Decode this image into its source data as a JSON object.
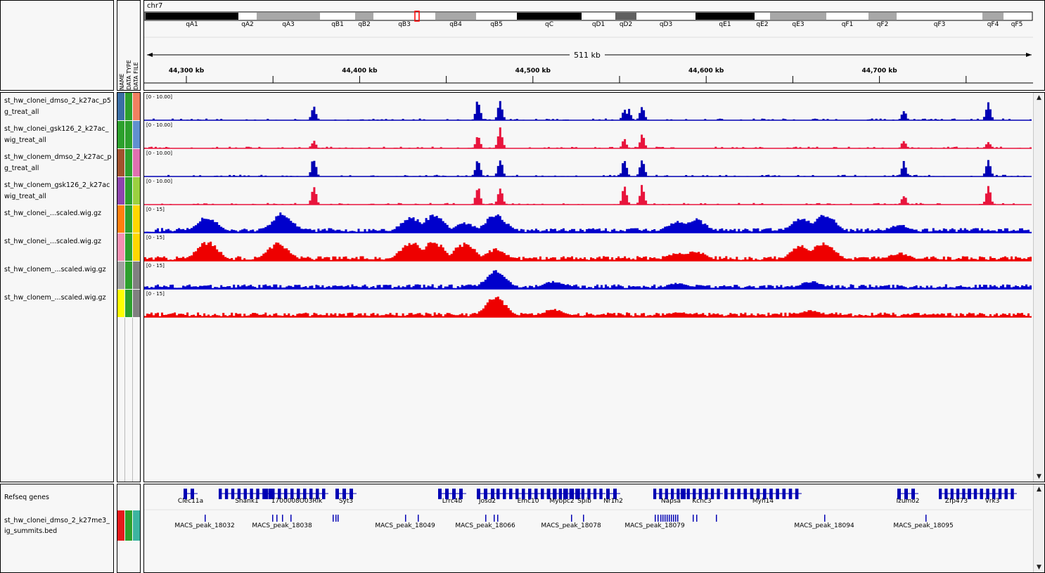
{
  "header": {
    "chromosome": "chr7",
    "span_label": "511 kb",
    "attribute_headers": [
      "NAME",
      "DATA TYPE",
      "DATA FILE"
    ],
    "cytobands": [
      {
        "name": "qA1",
        "stain": "black"
      },
      {
        "name": "qA2",
        "stain": "white"
      },
      {
        "name": "qA3",
        "stain": "grey"
      },
      {
        "name": "qB1",
        "stain": "white"
      },
      {
        "name": "qB2",
        "stain": "grey"
      },
      {
        "name": "qB3",
        "stain": "white"
      },
      {
        "name": "qB4",
        "stain": "grey"
      },
      {
        "name": "qB5",
        "stain": "white"
      },
      {
        "name": "qC",
        "stain": "black"
      },
      {
        "name": "qD1",
        "stain": "white"
      },
      {
        "name": "qD2",
        "stain": "darkgrey"
      },
      {
        "name": "qD3",
        "stain": "white"
      },
      {
        "name": "qE1",
        "stain": "black"
      },
      {
        "name": "qE2",
        "stain": "white"
      },
      {
        "name": "qE3",
        "stain": "grey"
      },
      {
        "name": "qF1",
        "stain": "white"
      },
      {
        "name": "qF2",
        "stain": "grey"
      },
      {
        "name": "qF3",
        "stain": "white"
      },
      {
        "name": "qF4",
        "stain": "grey"
      },
      {
        "name": "qF5",
        "stain": "white"
      }
    ],
    "ruler_ticks": [
      "44,300 kb",
      "44,400 kb",
      "44,500 kb",
      "44,600 kb",
      "44,700 kb"
    ]
  },
  "tracks": [
    {
      "name_line1": "st_hw_clonei_dmso_2_k27ac_p5",
      "name_line2": "g_treat_all",
      "range": "[0 - 10.00]",
      "color": "#0000b4",
      "attr_colors": [
        "#3a6ea5",
        "#2ca02c",
        "#f08060"
      ],
      "peaks": [
        [
          0.19,
          0.7
        ],
        [
          0.375,
          1.0
        ],
        [
          0.4,
          1.0
        ],
        [
          0.54,
          0.6
        ],
        [
          0.545,
          0.55
        ],
        [
          0.56,
          0.8
        ],
        [
          0.855,
          0.5
        ],
        [
          0.95,
          1.0
        ]
      ]
    },
    {
      "name_line1": "st_hw_clonei_gsk126_2_k27ac_",
      "name_line2": "wig_treat_all",
      "range": "[0 - 10.00]",
      "color": "#e8143c",
      "attr_colors": [
        "#2ca02c",
        "#2ca02c",
        "#6090d0"
      ],
      "peaks": [
        [
          0.19,
          0.4
        ],
        [
          0.375,
          0.6
        ],
        [
          0.4,
          1.0
        ],
        [
          0.54,
          0.45
        ],
        [
          0.56,
          0.7
        ],
        [
          0.855,
          0.4
        ],
        [
          0.95,
          0.35
        ]
      ]
    },
    {
      "name_line1": "st_hw_clonem_dmso_2_k27ac_p",
      "name_line2": "g_treat_all",
      "range": "[0 - 10.00]",
      "color": "#0000b4",
      "attr_colors": [
        "#a0522d",
        "#2ca02c",
        "#e070b0"
      ],
      "peaks": [
        [
          0.19,
          1.0
        ],
        [
          0.375,
          0.9
        ],
        [
          0.4,
          0.9
        ],
        [
          0.54,
          0.85
        ],
        [
          0.56,
          1.0
        ],
        [
          0.855,
          0.8
        ],
        [
          0.95,
          1.0
        ]
      ]
    },
    {
      "name_line1": "st_hw_clonem_gsk126_2_k27ac",
      "name_line2": "wig_treat_all",
      "range": "[0 - 10.00]",
      "color": "#e8143c",
      "attr_colors": [
        "#8e44ad",
        "#2ca02c",
        "#9bd040"
      ],
      "peaks": [
        [
          0.19,
          1.0
        ],
        [
          0.375,
          0.9
        ],
        [
          0.4,
          0.9
        ],
        [
          0.54,
          1.0
        ],
        [
          0.56,
          1.0
        ],
        [
          0.855,
          0.5
        ],
        [
          0.95,
          1.0
        ]
      ]
    },
    {
      "name_line1": "st_hw_clonei_...scaled.wig.gz",
      "name_line2": "",
      "range": "[0 - 15]",
      "color": "#0000cc",
      "attr_colors": [
        "#ff7f0e",
        "#2ca02c",
        "#ffd700"
      ],
      "peaks": [
        [
          0.07,
          0.8
        ],
        [
          0.15,
          0.6
        ],
        [
          0.155,
          1.0
        ],
        [
          0.3,
          0.8
        ],
        [
          0.325,
          0.9
        ],
        [
          0.36,
          0.5
        ],
        [
          0.395,
          0.9
        ],
        [
          0.6,
          0.6
        ],
        [
          0.605,
          0.5
        ],
        [
          0.62,
          0.7
        ],
        [
          0.74,
          0.8
        ],
        [
          0.765,
          1.0
        ],
        [
          0.85,
          0.4
        ]
      ]
    },
    {
      "name_line1": "st_hw_clonei_...scaled.wig.gz",
      "name_line2": "",
      "range": "[0 - 15]",
      "color": "#ee0000",
      "attr_colors": [
        "#f48fb1",
        "#2ca02c",
        "#ffd700"
      ],
      "peaks": [
        [
          0.07,
          1.0
        ],
        [
          0.15,
          0.9
        ],
        [
          0.3,
          1.0
        ],
        [
          0.325,
          1.0
        ],
        [
          0.36,
          0.9
        ],
        [
          0.395,
          0.6
        ],
        [
          0.6,
          0.4
        ],
        [
          0.62,
          0.5
        ],
        [
          0.74,
          0.8
        ],
        [
          0.765,
          1.0
        ],
        [
          0.85,
          0.4
        ]
      ]
    },
    {
      "name_line1": "st_hw_clonem_...scaled.wig.gz",
      "name_line2": "",
      "range": "[0 - 15]",
      "color": "#0000cc",
      "attr_colors": [
        "#a0a0a0",
        "#2ca02c",
        "#808080"
      ],
      "peaks": [
        [
          0.395,
          0.9
        ],
        [
          0.46,
          0.4
        ],
        [
          0.6,
          0.3
        ],
        [
          0.75,
          0.4
        ]
      ]
    },
    {
      "name_line1": "st_hw_clonem_...scaled.wig.gz",
      "name_line2": "",
      "range": "[0 - 15]",
      "color": "#ee0000",
      "attr_colors": [
        "#ffff00",
        "#2ca02c",
        "#808080"
      ],
      "peaks": [
        [
          0.395,
          1.0
        ],
        [
          0.46,
          0.4
        ],
        [
          0.6,
          0.25
        ],
        [
          0.75,
          0.35
        ]
      ]
    }
  ],
  "bottom": {
    "refseq": {
      "name": "Refseq genes",
      "genes": [
        "Clec11a",
        "Shank1",
        "1700008O03Rik",
        "Syt3",
        "Lrrc4b",
        "Josd2",
        "Emc10",
        "Mybpc2",
        "Spib",
        "Nr1h2",
        "Napsa",
        "Kcnc3",
        "Myh14",
        "Izumo2",
        "Zfp473",
        "Vrk3"
      ]
    },
    "bed": {
      "name_line1": "st_hw_clonei_dmso_2_k27me3_",
      "name_line2": "ig_summits.bed",
      "attr_colors": [
        "#e41a1c",
        "#2ca02c",
        "#3cb4a0"
      ],
      "peaks": [
        "MACS_peak_18032",
        "MACS_peak_18038",
        "MACS_peak_18049",
        "MACS_peak_18066",
        "MACS_peak_18078",
        "MACS_peak_18079",
        "MACS_peak_18094",
        "MACS_peak_18095"
      ]
    }
  },
  "colors": {
    "blue_track": "#0000b4",
    "red_track": "#e8143c",
    "panel_bg": "#f7f7f7",
    "gene": "#0000b4",
    "cyto_highlight": "#ff0000"
  }
}
